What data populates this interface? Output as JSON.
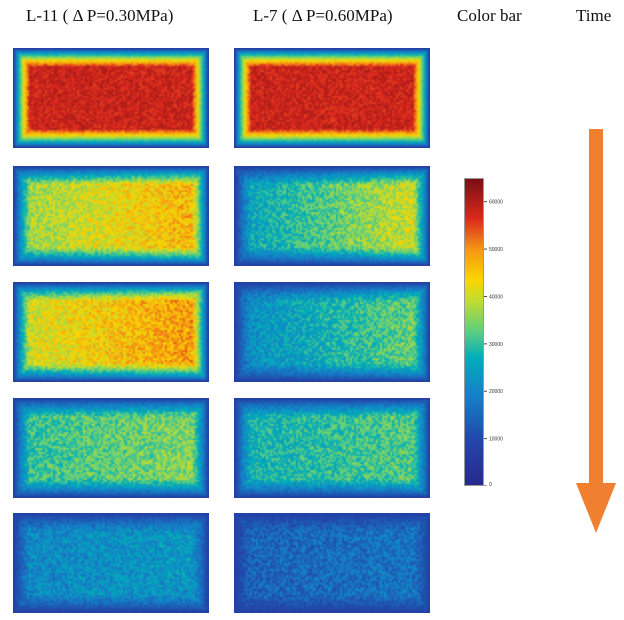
{
  "headers": {
    "col1": "L-11 ( Δ P=0.30MPa)",
    "col2": "L-7 ( Δ P=0.60MPa)",
    "colorbar": "Color bar",
    "time": "Time"
  },
  "colorbar": {
    "min": 0,
    "max": 65000,
    "ticks": [
      "0",
      "10000",
      "20000",
      "30000",
      "40000",
      "50000",
      "60000"
    ],
    "colormap": "jet"
  },
  "arrow_color": "#F08030",
  "columns": [
    {
      "label_ref": "col1",
      "panel_levels": [
        58000,
        42000,
        45000,
        33000,
        22000
      ],
      "right_bias": [
        0,
        6000,
        5000,
        3000,
        1500
      ]
    },
    {
      "label_ref": "col2",
      "panel_levels": [
        58000,
        33000,
        28000,
        30000,
        16000
      ],
      "right_bias": [
        0,
        9000,
        7000,
        3000,
        1500
      ]
    }
  ]
}
